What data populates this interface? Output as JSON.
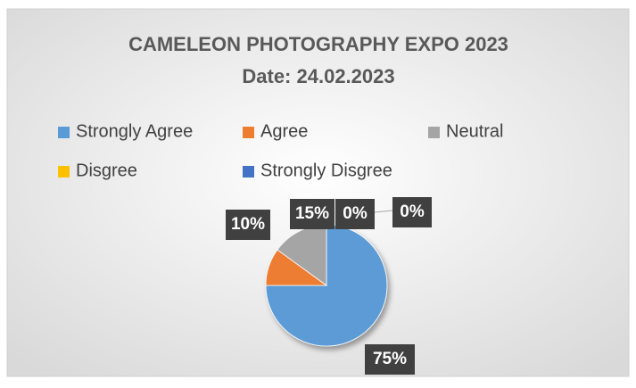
{
  "chart_data": {
    "type": "pie",
    "title": "CAMELEON PHOTOGRAPHY EXPO 2023",
    "subtitle": "Date: 24.02.2023",
    "categories": [
      "Strongly Agree",
      "Agree",
      "Neutral",
      "Disgree",
      "Strongly Disgree"
    ],
    "values": [
      75,
      10,
      15,
      0,
      0
    ],
    "value_labels": [
      "75%",
      "10%",
      "15%",
      "0%",
      "0%"
    ],
    "colors": [
      "#5b9bd5",
      "#ed7d31",
      "#a5a5a5",
      "#ffc000",
      "#4472c4"
    ],
    "legend": "top"
  }
}
